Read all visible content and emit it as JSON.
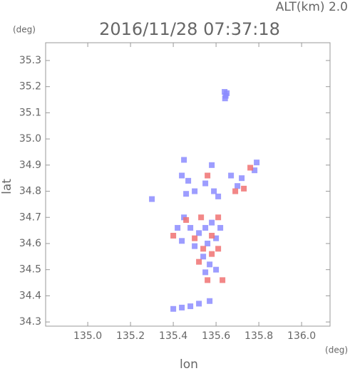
{
  "chart_data": {
    "type": "scatter",
    "title": "2016/11/28 07:37:18",
    "altitude_label": "ALT(km) 2.0",
    "y_unit": "(deg)",
    "x_unit": "(deg)",
    "xlabel": "lon",
    "ylabel": "lat",
    "xlim": [
      134.803,
      136.133
    ],
    "ylim": [
      34.284,
      35.368
    ],
    "xticks": [
      {
        "value": 135,
        "label": "135.0"
      },
      135.2,
      135.4,
      135.6,
      135.8,
      {
        "value": 136,
        "label": "136.0"
      }
    ],
    "yticks": [
      34.3,
      34.4,
      34.5,
      34.6,
      34.7,
      34.8,
      34.9,
      {
        "value": 35,
        "label": "35.0"
      },
      35.1,
      35.2,
      35.3
    ],
    "series": [
      {
        "color": "#8c8cff",
        "x": [
          135.64,
          135.645,
          135.65,
          135.642,
          135.45,
          135.44,
          135.47,
          135.5,
          135.46,
          135.58,
          135.55,
          135.59,
          135.61,
          135.67,
          135.7,
          135.72,
          135.78,
          135.79,
          135.42,
          135.45,
          135.48,
          135.52,
          135.55,
          135.58,
          135.62,
          135.6,
          135.56,
          135.5,
          135.44,
          135.54,
          135.57,
          135.55,
          135.6,
          135.3,
          135.4,
          135.44,
          135.48,
          135.52,
          135.57
        ],
        "y": [
          35.18,
          35.165,
          35.175,
          35.155,
          34.92,
          34.86,
          34.84,
          34.8,
          34.79,
          34.9,
          34.83,
          34.8,
          34.78,
          34.86,
          34.82,
          34.85,
          34.88,
          34.91,
          34.66,
          34.7,
          34.66,
          34.64,
          34.66,
          34.68,
          34.66,
          34.62,
          34.6,
          34.59,
          34.61,
          34.55,
          34.52,
          34.49,
          34.5,
          34.77,
          34.35,
          34.355,
          34.36,
          34.37,
          34.38
        ]
      },
      {
        "color": "#f07272",
        "x": [
          135.56,
          135.69,
          135.73,
          135.76,
          135.46,
          135.53,
          135.61,
          135.4,
          135.5,
          135.58,
          135.54,
          135.61,
          135.58,
          135.52,
          135.56,
          135.63
        ],
        "y": [
          34.86,
          34.8,
          34.81,
          34.89,
          34.69,
          34.7,
          34.7,
          34.63,
          34.62,
          34.63,
          34.58,
          34.58,
          34.56,
          34.53,
          34.46,
          34.46
        ]
      }
    ]
  }
}
